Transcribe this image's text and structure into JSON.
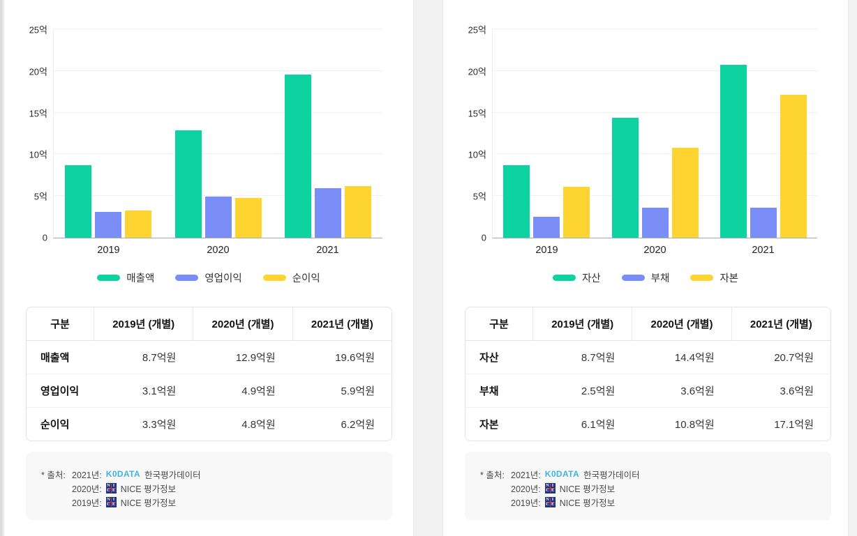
{
  "colors": {
    "green": "#0cd3a0",
    "blue": "#7b8ef8",
    "yellow": "#fdd430"
  },
  "chart_data": [
    {
      "type": "bar",
      "title": "",
      "categories": [
        "2019",
        "2020",
        "2021"
      ],
      "series": [
        {
          "name": "매출액",
          "color": "green",
          "values": [
            8.7,
            12.9,
            19.6
          ]
        },
        {
          "name": "영업이익",
          "color": "blue",
          "values": [
            3.1,
            4.9,
            5.9
          ]
        },
        {
          "name": "순이익",
          "color": "yellow",
          "values": [
            3.3,
            4.8,
            6.2
          ]
        }
      ],
      "xlabel": "",
      "ylabel": "",
      "ylim": [
        0,
        25
      ],
      "yticks": [
        "0",
        "5억",
        "10억",
        "15억",
        "20억",
        "25억"
      ],
      "grid": true,
      "legend_position": "bottom"
    },
    {
      "type": "bar",
      "title": "",
      "categories": [
        "2019",
        "2020",
        "2021"
      ],
      "series": [
        {
          "name": "자산",
          "color": "green",
          "values": [
            8.7,
            14.4,
            20.7
          ]
        },
        {
          "name": "부채",
          "color": "blue",
          "values": [
            2.5,
            3.6,
            3.6
          ]
        },
        {
          "name": "자본",
          "color": "yellow",
          "values": [
            6.1,
            10.8,
            17.1
          ]
        }
      ],
      "xlabel": "",
      "ylabel": "",
      "ylim": [
        0,
        25
      ],
      "yticks": [
        "0",
        "5억",
        "10억",
        "15억",
        "20억",
        "25억"
      ],
      "grid": true,
      "legend_position": "bottom"
    }
  ],
  "panels": [
    {
      "table": {
        "headers": [
          "구분",
          "2019년 (개별)",
          "2020년 (개별)",
          "2021년 (개별)"
        ],
        "rows": [
          {
            "label": "매출액",
            "values": [
              "8.7억원",
              "12.9억원",
              "19.6억원"
            ]
          },
          {
            "label": "영업이익",
            "values": [
              "3.1억원",
              "4.9억원",
              "5.9억원"
            ]
          },
          {
            "label": "순이익",
            "values": [
              "3.3억원",
              "4.8억원",
              "6.2억원"
            ]
          }
        ]
      },
      "source": {
        "prefix": "* 출처:",
        "kodata_logo_text": "K0DATA",
        "nice_logo_letters": [
          "N",
          "I",
          "C",
          "E"
        ],
        "entries": [
          {
            "year": "2021년:",
            "logo": "kodata",
            "text": "한국평가데이터"
          },
          {
            "year": "2020년:",
            "logo": "nice",
            "text": "NICE 평가정보"
          },
          {
            "year": "2019년:",
            "logo": "nice",
            "text": "NICE 평가정보"
          }
        ]
      }
    },
    {
      "table": {
        "headers": [
          "구분",
          "2019년 (개별)",
          "2020년 (개별)",
          "2021년 (개별)"
        ],
        "rows": [
          {
            "label": "자산",
            "values": [
              "8.7억원",
              "14.4억원",
              "20.7억원"
            ]
          },
          {
            "label": "부채",
            "values": [
              "2.5억원",
              "3.6억원",
              "3.6억원"
            ]
          },
          {
            "label": "자본",
            "values": [
              "6.1억원",
              "10.8억원",
              "17.1억원"
            ]
          }
        ]
      },
      "source": {
        "prefix": "* 출처:",
        "kodata_logo_text": "K0DATA",
        "nice_logo_letters": [
          "N",
          "I",
          "C",
          "E"
        ],
        "entries": [
          {
            "year": "2021년:",
            "logo": "kodata",
            "text": "한국평가데이터"
          },
          {
            "year": "2020년:",
            "logo": "nice",
            "text": "NICE 평가정보"
          },
          {
            "year": "2019년:",
            "logo": "nice",
            "text": "NICE 평가정보"
          }
        ]
      }
    }
  ]
}
